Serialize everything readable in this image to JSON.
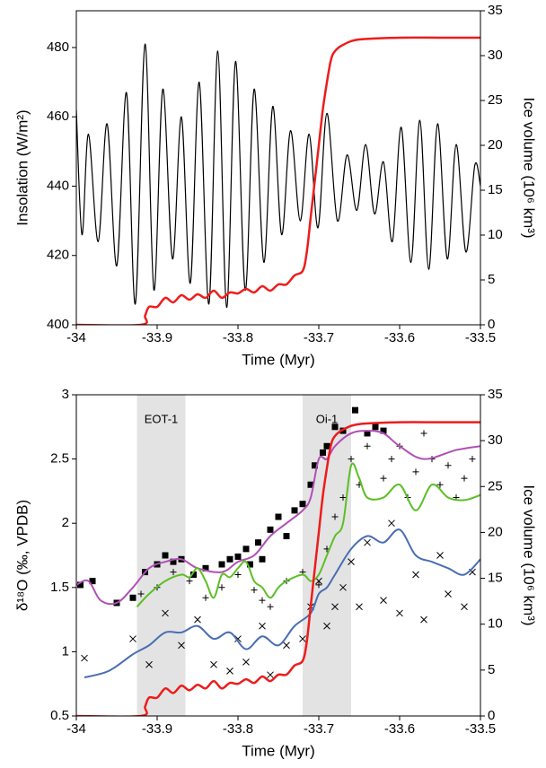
{
  "chart_data": [
    {
      "type": "line",
      "xlabel": "Time (Myr)",
      "ylabel": "Insolation (W/m²)",
      "y2label": "Ice volume (10⁶ km³)",
      "xlim": [
        -34,
        -33.5
      ],
      "xticks": [
        -34,
        -33.9,
        -33.8,
        -33.7,
        -33.6,
        -33.5
      ],
      "ylim": [
        400,
        490.6
      ],
      "yticks": [
        400,
        420,
        440,
        460,
        480
      ],
      "y2lim": [
        0,
        35
      ],
      "y2ticks": [
        0,
        5,
        10,
        15,
        20,
        25,
        30,
        35
      ],
      "series": [
        {
          "type": "line",
          "color": "#000000",
          "x": [
            -34,
            -33.993,
            -33.985,
            -33.973,
            -33.962,
            -33.95,
            -33.938,
            -33.927,
            -33.915,
            -33.904,
            -33.893,
            -33.881,
            -33.87,
            -33.859,
            -33.848,
            -33.836,
            -33.825,
            -33.814,
            -33.803,
            -33.791,
            -33.78,
            -33.768,
            -33.757,
            -33.746,
            -33.735,
            -33.723,
            -33.712,
            -33.701,
            -33.69,
            -33.677,
            -33.665,
            -33.653,
            -33.642,
            -33.631,
            -33.62,
            -33.609,
            -33.598,
            -33.586,
            -33.575,
            -33.564,
            -33.553,
            -33.541,
            -33.53,
            -33.518,
            -33.507,
            -33.5
          ],
          "values": [
            462,
            426,
            455,
            424,
            458,
            417,
            467,
            406,
            481,
            410,
            468,
            419,
            460,
            412,
            470,
            406,
            479,
            405,
            476,
            410,
            468,
            418,
            463,
            426,
            456,
            430,
            455,
            428,
            461,
            430,
            449,
            433,
            452,
            432,
            447,
            424,
            457,
            418,
            459,
            416,
            458,
            419,
            452,
            421,
            446,
            440
          ]
        },
        {
          "type": "line",
          "axis": "y2",
          "color": "#ee1c1c",
          "x": [
            -34,
            -33.92,
            -33.915,
            -33.91,
            -33.9,
            -33.89,
            -33.88,
            -33.87,
            -33.86,
            -33.85,
            -33.84,
            -33.83,
            -33.82,
            -33.81,
            -33.8,
            -33.79,
            -33.78,
            -33.77,
            -33.76,
            -33.75,
            -33.74,
            -33.73,
            -33.72,
            -33.715,
            -33.71,
            -33.705,
            -33.7,
            -33.695,
            -33.69,
            -33.685,
            -33.68,
            -33.67,
            -33.65,
            -33.6,
            -33.55,
            -33.5
          ],
          "values": [
            0,
            0,
            1,
            2,
            2,
            3,
            2.5,
            3.3,
            2.8,
            3.4,
            3,
            3.8,
            3,
            3.6,
            3.5,
            4,
            3.6,
            4.3,
            3.8,
            4.5,
            4.5,
            5.5,
            6,
            8,
            12,
            16,
            20,
            24,
            27,
            29.5,
            30.5,
            31.2,
            31.8,
            32,
            32,
            32
          ]
        }
      ]
    },
    {
      "type": "line",
      "xlabel": "Time (Myr)",
      "ylabel": "δ¹⁸O (‰, VPDB)",
      "y2label": "Ice volume (10⁶ km³)",
      "xlim": [
        -34,
        -33.5
      ],
      "xticks": [
        -34,
        -33.9,
        -33.8,
        -33.7,
        -33.6,
        -33.5
      ],
      "ylim": [
        0.5,
        3
      ],
      "yticks": [
        0.5,
        1,
        1.5,
        2,
        2.5,
        3
      ],
      "y2lim": [
        0,
        35
      ],
      "y2ticks": [
        0,
        5,
        10,
        15,
        20,
        25,
        30,
        35
      ],
      "shaded_regions": [
        {
          "label": "EOT-1",
          "x": [
            -33.925,
            -33.865
          ]
        },
        {
          "label": "Oi-1",
          "x": [
            -33.72,
            -33.66
          ]
        }
      ],
      "series": [
        {
          "type": "scatter",
          "marker": "square",
          "color": "#000000",
          "x": [
            -33.995,
            -33.98,
            -33.95,
            -33.93,
            -33.915,
            -33.9,
            -33.89,
            -33.88,
            -33.87,
            -33.855,
            -33.84,
            -33.82,
            -33.81,
            -33.8,
            -33.79,
            -33.785,
            -33.775,
            -33.77,
            -33.76,
            -33.75,
            -33.74,
            -33.73,
            -33.72,
            -33.71,
            -33.705,
            -33.695,
            -33.69,
            -33.68,
            -33.67,
            -33.655,
            -33.64,
            -33.63,
            -33.62
          ],
          "values": [
            1.52,
            1.55,
            1.38,
            1.42,
            1.62,
            1.68,
            1.75,
            1.7,
            1.72,
            1.6,
            1.65,
            1.68,
            1.72,
            1.74,
            1.8,
            1.68,
            1.85,
            1.72,
            1.95,
            2.05,
            1.9,
            2.1,
            2.15,
            2.3,
            2.45,
            2.55,
            2.6,
            2.75,
            2.72,
            2.88,
            2.7,
            2.75,
            2.72
          ]
        },
        {
          "type": "scatter",
          "marker": "plus",
          "color": "#000000",
          "x": [
            -33.92,
            -33.9,
            -33.88,
            -33.86,
            -33.84,
            -33.82,
            -33.8,
            -33.78,
            -33.77,
            -33.76,
            -33.74,
            -33.72,
            -33.7,
            -33.69,
            -33.68,
            -33.67,
            -33.66,
            -33.65,
            -33.64,
            -33.63,
            -33.62,
            -33.61,
            -33.6,
            -33.59,
            -33.58,
            -33.57,
            -33.56,
            -33.55,
            -33.54,
            -33.53,
            -33.52,
            -33.51
          ],
          "values": [
            1.45,
            1.5,
            1.62,
            1.55,
            1.42,
            1.5,
            1.6,
            1.48,
            1.4,
            1.35,
            1.55,
            1.62,
            1.52,
            1.8,
            2.05,
            2.2,
            2.5,
            2.3,
            2.6,
            2.75,
            2.35,
            2.5,
            2.6,
            2.2,
            2.4,
            2.7,
            2.5,
            2.3,
            2.45,
            2.2,
            2.35,
            2.5
          ]
        },
        {
          "type": "scatter",
          "marker": "cross",
          "color": "#000000",
          "x": [
            -33.99,
            -33.93,
            -33.91,
            -33.89,
            -33.87,
            -33.85,
            -33.83,
            -33.81,
            -33.8,
            -33.79,
            -33.77,
            -33.76,
            -33.74,
            -33.72,
            -33.71,
            -33.7,
            -33.69,
            -33.68,
            -33.67,
            -33.66,
            -33.65,
            -33.64,
            -33.62,
            -33.61,
            -33.6,
            -33.58,
            -33.57,
            -33.55,
            -33.54,
            -33.52,
            -33.51
          ],
          "values": [
            0.95,
            1.1,
            0.9,
            1.3,
            1.05,
            1.25,
            0.9,
            0.85,
            1.1,
            0.92,
            1.2,
            0.82,
            1.05,
            1.1,
            1.35,
            1.55,
            1.2,
            1.35,
            1.5,
            1.7,
            1.35,
            1.85,
            1.4,
            2.0,
            1.3,
            1.6,
            1.25,
            1.75,
            1.45,
            1.35,
            1.62
          ]
        },
        {
          "type": "line",
          "color": "#b04fb5",
          "x": [
            -34,
            -33.985,
            -33.97,
            -33.95,
            -33.93,
            -33.91,
            -33.89,
            -33.87,
            -33.85,
            -33.82,
            -33.8,
            -33.78,
            -33.76,
            -33.74,
            -33.72,
            -33.71,
            -33.7,
            -33.69,
            -33.68,
            -33.66,
            -33.64,
            -33.62,
            -33.6,
            -33.57,
            -33.53,
            -33.5
          ],
          "values": [
            1.52,
            1.55,
            1.4,
            1.38,
            1.5,
            1.65,
            1.7,
            1.72,
            1.65,
            1.62,
            1.7,
            1.75,
            1.9,
            2.0,
            2.1,
            2.2,
            2.5,
            2.5,
            2.6,
            2.7,
            2.72,
            2.7,
            2.6,
            2.5,
            2.57,
            2.6
          ]
        },
        {
          "type": "line",
          "color": "#5cbf24",
          "x": [
            -33.925,
            -33.91,
            -33.89,
            -33.87,
            -33.86,
            -33.85,
            -33.84,
            -33.83,
            -33.82,
            -33.81,
            -33.8,
            -33.79,
            -33.78,
            -33.77,
            -33.76,
            -33.75,
            -33.74,
            -33.72,
            -33.71,
            -33.7,
            -33.69,
            -33.68,
            -33.67,
            -33.66,
            -33.65,
            -33.64,
            -33.62,
            -33.6,
            -33.58,
            -33.56,
            -33.54,
            -33.52,
            -33.5
          ],
          "values": [
            1.35,
            1.45,
            1.55,
            1.6,
            1.58,
            1.65,
            1.55,
            1.42,
            1.6,
            1.58,
            1.65,
            1.7,
            1.55,
            1.5,
            1.42,
            1.5,
            1.55,
            1.6,
            1.55,
            1.6,
            1.75,
            1.9,
            2.0,
            2.45,
            2.35,
            2.2,
            2.2,
            2.3,
            2.1,
            2.3,
            2.2,
            2.18,
            2.22
          ]
        },
        {
          "type": "line",
          "color": "#4a6db3",
          "x": [
            -33.99,
            -33.96,
            -33.93,
            -33.91,
            -33.89,
            -33.87,
            -33.85,
            -33.83,
            -33.81,
            -33.79,
            -33.77,
            -33.75,
            -33.73,
            -33.71,
            -33.7,
            -33.69,
            -33.68,
            -33.66,
            -33.64,
            -33.62,
            -33.6,
            -33.58,
            -33.56,
            -33.54,
            -33.52,
            -33.5
          ],
          "values": [
            0.8,
            0.85,
            0.98,
            1.05,
            1.15,
            1.15,
            1.2,
            1.1,
            1.15,
            1.02,
            1.12,
            1.05,
            1.2,
            1.3,
            1.45,
            1.5,
            1.6,
            1.8,
            1.9,
            1.85,
            1.95,
            1.75,
            1.7,
            1.65,
            1.6,
            1.72
          ]
        },
        {
          "type": "line",
          "axis": "y2",
          "color": "#ee1c1c",
          "x": [
            -34,
            -33.92,
            -33.915,
            -33.91,
            -33.9,
            -33.89,
            -33.88,
            -33.87,
            -33.86,
            -33.85,
            -33.84,
            -33.83,
            -33.82,
            -33.81,
            -33.8,
            -33.79,
            -33.78,
            -33.77,
            -33.76,
            -33.75,
            -33.74,
            -33.73,
            -33.72,
            -33.715,
            -33.71,
            -33.705,
            -33.7,
            -33.695,
            -33.69,
            -33.685,
            -33.68,
            -33.67,
            -33.65,
            -33.6,
            -33.55,
            -33.5
          ],
          "values": [
            0,
            0,
            1,
            2,
            2,
            3,
            2.5,
            3.3,
            2.8,
            3.4,
            3,
            3.8,
            3,
            3.6,
            3.5,
            4,
            3.6,
            4.3,
            3.8,
            4.5,
            4.5,
            5.5,
            6,
            8,
            12,
            16,
            20,
            24,
            27,
            29.5,
            30.5,
            31.2,
            31.8,
            32,
            32,
            32
          ]
        }
      ]
    }
  ]
}
